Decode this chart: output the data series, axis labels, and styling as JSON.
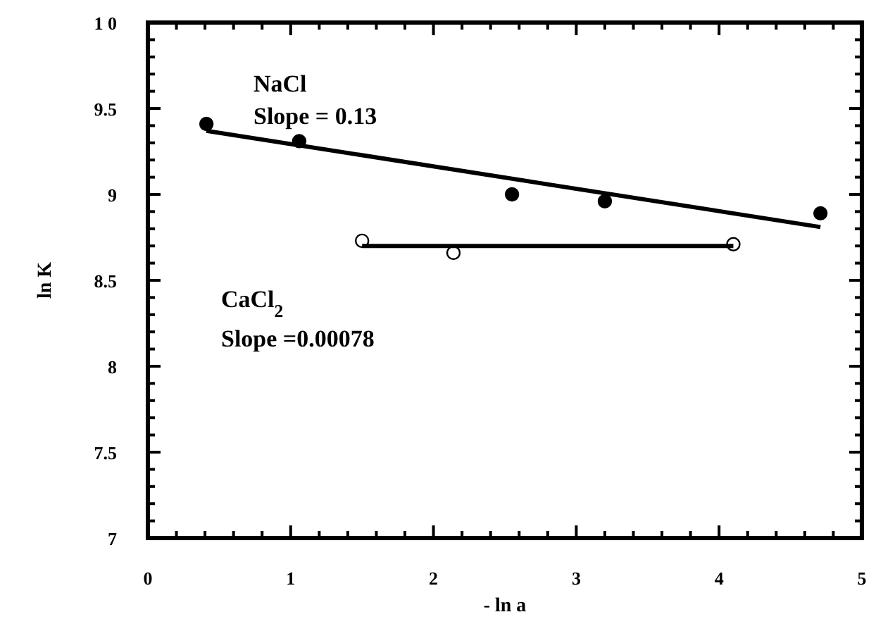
{
  "chart_data": {
    "type": "scatter",
    "xlabel": "- ln a",
    "ylabel": "ln K",
    "xlim": [
      0,
      5
    ],
    "ylim": [
      7,
      10
    ],
    "xticks": [
      0,
      {
        "value": 0.2,
        "label": null
      },
      {
        "value": 0.4,
        "label": null
      },
      {
        "value": 0.6,
        "label": null
      },
      {
        "value": 0.8,
        "label": null
      },
      1,
      {
        "value": 1.2,
        "label": null
      },
      {
        "value": 1.4,
        "label": null
      },
      {
        "value": 1.6,
        "label": null
      },
      {
        "value": 1.8,
        "label": null
      },
      2,
      {
        "value": 2.2,
        "label": null
      },
      {
        "value": 2.4,
        "label": null
      },
      {
        "value": 2.6,
        "label": null
      },
      {
        "value": 2.8,
        "label": null
      },
      3,
      {
        "value": 3.2,
        "label": null
      },
      {
        "value": 3.4,
        "label": null
      },
      {
        "value": 3.6,
        "label": null
      },
      {
        "value": 3.8,
        "label": null
      },
      4,
      {
        "value": 4.2,
        "label": null
      },
      {
        "value": 4.4,
        "label": null
      },
      {
        "value": 4.6,
        "label": null
      },
      {
        "value": 4.8,
        "label": null
      },
      5
    ],
    "yticks": [
      7,
      {
        "value": 7.1,
        "label": null
      },
      {
        "value": 7.2,
        "label": null
      },
      {
        "value": 7.3,
        "label": null
      },
      {
        "value": 7.4,
        "label": null
      },
      {
        "value": 7.5,
        "label": "7.5"
      },
      {
        "value": 7.6,
        "label": null
      },
      {
        "value": 7.7,
        "label": null
      },
      {
        "value": 7.8,
        "label": null
      },
      {
        "value": 7.9,
        "label": null
      },
      8,
      {
        "value": 8.1,
        "label": null
      },
      {
        "value": 8.2,
        "label": null
      },
      {
        "value": 8.3,
        "label": null
      },
      {
        "value": 8.4,
        "label": null
      },
      {
        "value": 8.5,
        "label": "8.5"
      },
      {
        "value": 8.6,
        "label": null
      },
      {
        "value": 8.7,
        "label": null
      },
      {
        "value": 8.8,
        "label": null
      },
      {
        "value": 8.9,
        "label": null
      },
      9,
      {
        "value": 9.1,
        "label": null
      },
      {
        "value": 9.2,
        "label": null
      },
      {
        "value": 9.3,
        "label": null
      },
      {
        "value": 9.4,
        "label": null
      },
      {
        "value": 9.5,
        "label": "9.5"
      },
      {
        "value": 9.6,
        "label": null
      },
      {
        "value": 9.7,
        "label": null
      },
      {
        "value": 9.8,
        "label": null
      },
      {
        "value": 9.9,
        "label": null
      },
      {
        "value": 10,
        "label": "1 0"
      }
    ],
    "grid": false,
    "annotations": [
      "NaCl",
      "Slope  =  0.13",
      "CaCl$_{2}$",
      "Slope  =0.00078"
    ],
    "series": [
      {
        "marker": "circle",
        "color": "#000000",
        "x": [
          0.41,
          1.06,
          2.55,
          3.2,
          4.71
        ],
        "values": [
          9.41,
          9.31,
          9.0,
          8.96,
          8.89
        ]
      },
      {
        "type": "line",
        "marker": "none",
        "color": "#000000",
        "x": [
          0.41,
          4.71
        ],
        "values": [
          9.37,
          8.81
        ]
      },
      {
        "marker": "circle",
        "color": "#ffffff",
        "x": [
          1.5,
          2.14,
          4.1
        ],
        "values": [
          8.73,
          8.66,
          8.71
        ]
      },
      {
        "type": "line",
        "marker": "none",
        "color": "#000000",
        "x": [
          1.5,
          4.1
        ],
        "values": [
          8.7,
          8.7
        ]
      }
    ]
  }
}
